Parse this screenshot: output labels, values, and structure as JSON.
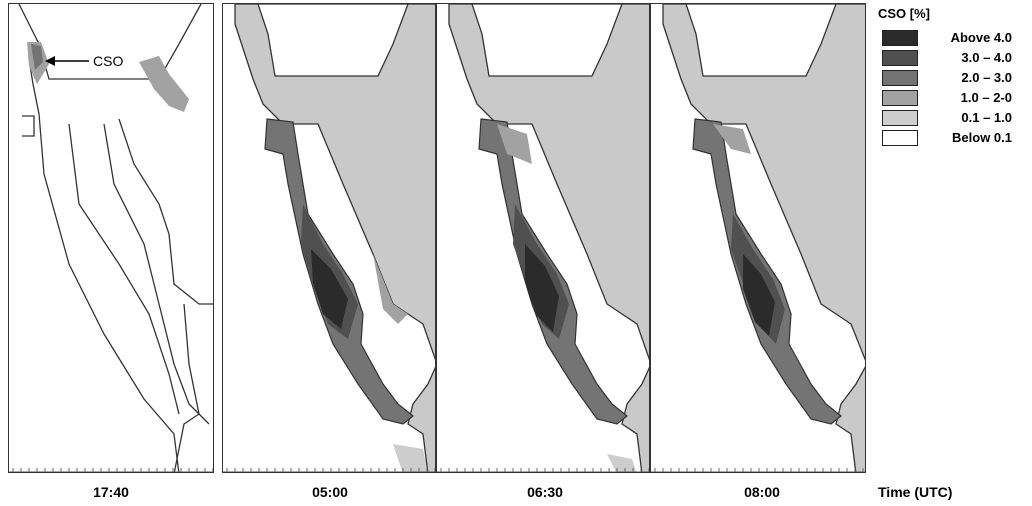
{
  "legend": {
    "title": "CSO [%]",
    "entries": [
      {
        "label": "Above 4.0",
        "color": "#2b2b2b"
      },
      {
        "label": "3.0 – 4.0",
        "color": "#505050"
      },
      {
        "label": "2.0 – 3.0",
        "color": "#747474"
      },
      {
        "label": "1.0 – 2-0",
        "color": "#a2a2a2"
      },
      {
        "label": "0.1 – 1.0",
        "color": "#cdcdcd"
      },
      {
        "label": "Below 0.1",
        "color": "#ffffff"
      }
    ]
  },
  "panels": [
    {
      "time": "17:40"
    },
    {
      "time": "05:00"
    },
    {
      "time": "06:30"
    },
    {
      "time": "08:00"
    }
  ],
  "annotation": {
    "label": "CSO"
  },
  "axis": {
    "title": "Time (UTC)"
  },
  "colors": {
    "land": "#c9c9c9",
    "water": "#ffffff",
    "outline": "#333333"
  }
}
